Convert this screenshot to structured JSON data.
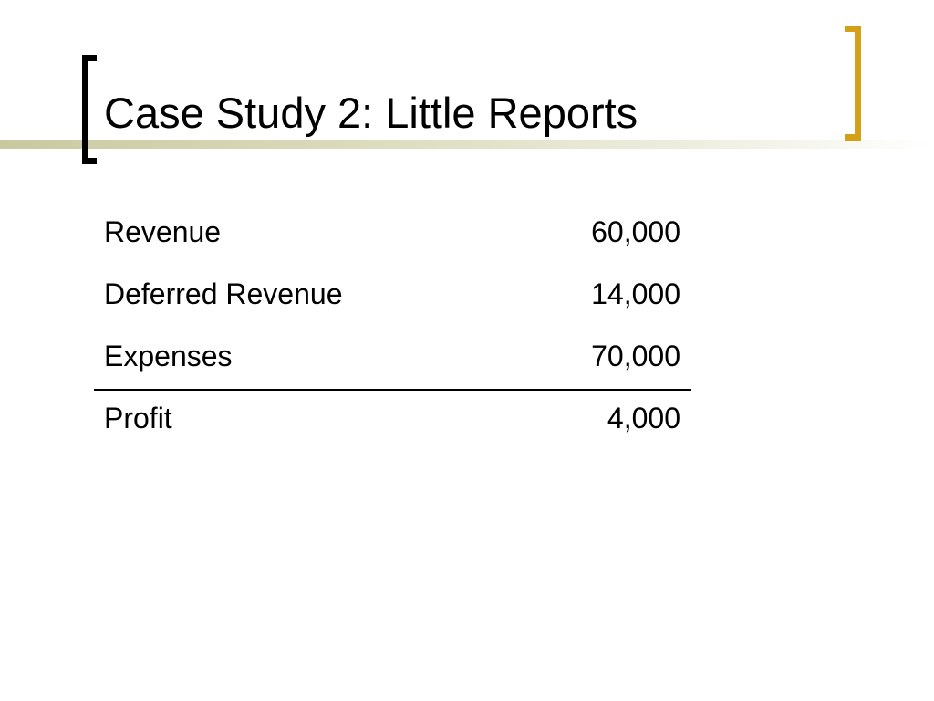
{
  "slide": {
    "title": "Case Study 2: Little Reports",
    "colors": {
      "accent_bar": "#c9c9a0",
      "left_bracket": "#000000",
      "right_bracket": "#d4a017"
    }
  },
  "report": {
    "rows": [
      {
        "label": "Revenue",
        "value": "60,000"
      },
      {
        "label": "Deferred Revenue",
        "value": "14,000"
      },
      {
        "label": "Expenses",
        "value": "70,000"
      }
    ],
    "total": {
      "label": "Profit",
      "value": "4,000"
    }
  }
}
